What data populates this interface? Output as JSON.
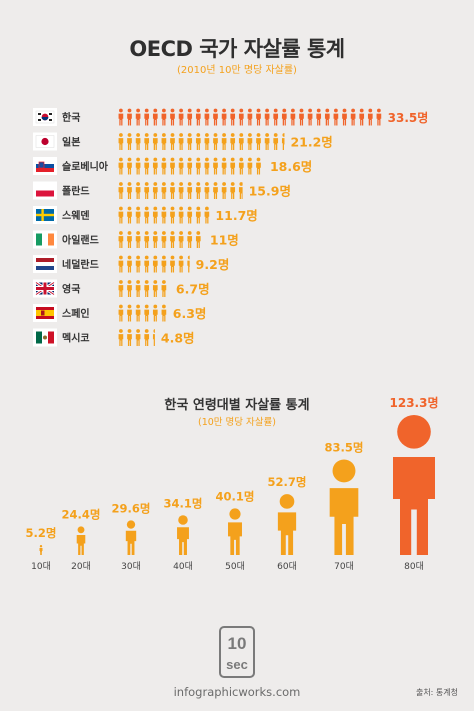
{
  "chart_data": [
    {
      "type": "bar",
      "title": "OECD 국가 자살률 통계",
      "subtitle": "(2010년 10만 명당 자살률)",
      "categories": [
        "한국",
        "일본",
        "슬로베니아",
        "폴란드",
        "스웨덴",
        "아일랜드",
        "네덜란드",
        "영국",
        "스페인",
        "멕시코"
      ],
      "values": [
        33.5,
        21.2,
        18.6,
        15.9,
        11.7,
        11,
        9.2,
        6.7,
        6.3,
        4.8
      ],
      "value_labels": [
        "33.5명",
        "21.2명",
        "18.6명",
        "15.9명",
        "11.7명",
        "11명",
        "9.2명",
        "6.7명",
        "6.3명",
        "4.8명"
      ],
      "flags": [
        "south-korea-flag-icon",
        "japan-flag-icon",
        "slovenia-flag-icon",
        "poland-flag-icon",
        "sweden-flag-icon",
        "ireland-flag-icon",
        "netherlands-flag-icon",
        "uk-flag-icon",
        "spain-flag-icon",
        "mexico-flag-icon"
      ],
      "orientation": "horizontal",
      "mark": "person-icon",
      "highlight_index": 0,
      "colors": {
        "bar": "#f4a11c",
        "highlight": "#f0642b"
      }
    },
    {
      "type": "bar",
      "title": "한국 연령대별 자살률 통계",
      "subtitle": "(10만 명당 자살률)",
      "categories": [
        "10대",
        "20대",
        "30대",
        "40대",
        "50대",
        "60대",
        "70대",
        "80대"
      ],
      "values": [
        5.2,
        24.4,
        29.6,
        34.1,
        40.1,
        52.7,
        83.5,
        123.3
      ],
      "value_labels": [
        "5.2명",
        "24.4명",
        "29.6명",
        "34.1명",
        "40.1명",
        "52.7명",
        "83.5명",
        "123.3명"
      ],
      "orientation": "vertical",
      "mark": "person-icon",
      "highlight_index": 7,
      "colors": {
        "bar": "#f4a11c",
        "highlight": "#f0642b"
      }
    }
  ],
  "footer": {
    "logo_text": "10sec",
    "url": "infographicworks.com",
    "source": "출처: 통계청"
  },
  "colors": {
    "background": "#eeeceb",
    "orange": "#f4a11c",
    "red_orange": "#f0642b",
    "flag_box": "#ffffff"
  }
}
